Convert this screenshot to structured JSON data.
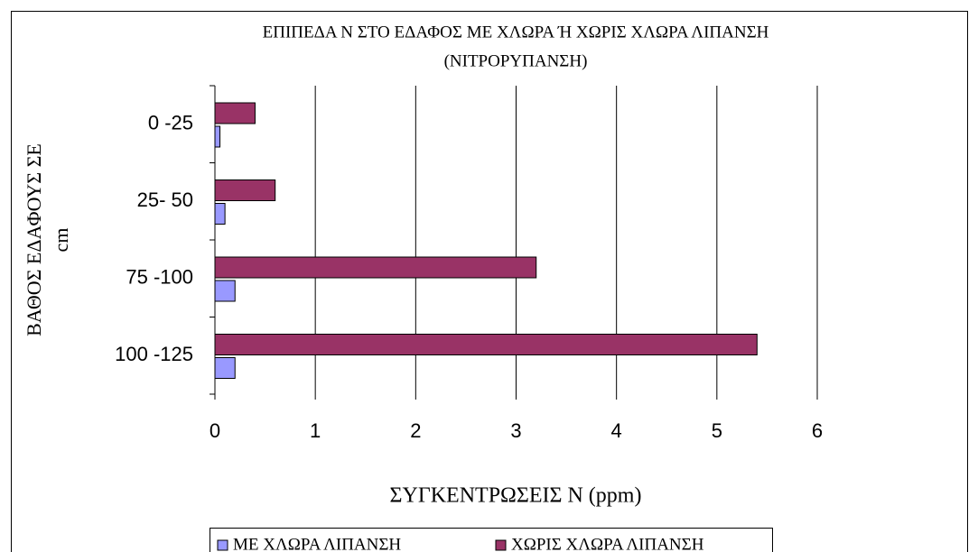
{
  "chart_data": {
    "type": "barh",
    "title": [
      "ΕΠΙΠΕΔΑ Ν ΣΤΟ ΕΔΑΦΟΣ ΜΕ ΧΛΩΡΑ Ή ΧΩΡΙΣ ΧΛΩΡΑ ΛΙΠΑΝΣΗ",
      "(ΝΙΤΡΟΡΥΠΑΝΣΗ)"
    ],
    "ylabel": [
      "ΒΑΘΟΣ ΕΔΑΦΟΥΣ ΣΕ",
      "cm"
    ],
    "xlabel": "ΣΥΓΚΕΝΤΡΩΣΕΙΣ Ν (ppm)",
    "categories": [
      "0 -25",
      "25- 50",
      "75 -100",
      "100 -125"
    ],
    "series": [
      {
        "name": "ΜΕ ΧΛΩΡΑ ΛΙΠΑΝΣΗ",
        "color": "#9999ff",
        "values": [
          0.05,
          0.1,
          0.2,
          0.2
        ]
      },
      {
        "name": "ΧΩΡΙΣ ΧΛΩΡΑ ΛΙΠΑΝΣΗ",
        "color": "#993366",
        "values": [
          0.4,
          0.6,
          3.2,
          5.4
        ]
      }
    ],
    "xlim": [
      0,
      6
    ],
    "xticks": [
      0,
      1,
      2,
      3,
      4,
      5,
      6
    ],
    "grid": true,
    "legend": "bottom"
  }
}
